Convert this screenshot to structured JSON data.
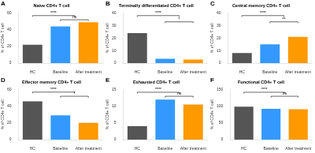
{
  "chart_data": [
    {
      "type": "bar",
      "label": "A",
      "title": "Naive CD4+ T cell",
      "ylabel": "% of CD4+ T cell",
      "categories": [
        "HC",
        "Baseline",
        "After treatment"
      ],
      "values": [
        22,
        44,
        49
      ],
      "colors": [
        "#555555",
        "#3399ff",
        "#ff9900"
      ],
      "ylim": [
        0,
        60
      ],
      "yticks": [
        0,
        20,
        40,
        60
      ],
      "grid": false,
      "annotations": [
        {
          "text": "****",
          "x1": 0,
          "x2": 1.5,
          "y": 57
        },
        {
          "text": "ns",
          "x1": 1,
          "x2": 2,
          "y": 52
        }
      ]
    },
    {
      "type": "bar",
      "label": "B",
      "title": "Terminally differentiated CD4+ T cell",
      "ylabel": "% of CD4+ T cell",
      "categories": [
        "HC",
        "Baseline",
        "After treatment"
      ],
      "values": [
        24,
        3.5,
        2.8
      ],
      "colors": [
        "#555555",
        "#3399ff",
        "#ff9900"
      ],
      "ylim": [
        0,
        40
      ],
      "yticks": [
        0,
        10,
        20,
        30,
        40
      ],
      "grid": false,
      "annotations": [
        {
          "text": "****",
          "x1": 0,
          "x2": 1.5,
          "y": 38
        },
        {
          "text": "*",
          "x1": 1,
          "x2": 2,
          "y": 33
        }
      ]
    },
    {
      "type": "bar",
      "label": "C",
      "title": "Central memory CD4+ T cell",
      "ylabel": "% of CD4+ T cell",
      "categories": [
        "HC",
        "Baseline",
        "After treatment"
      ],
      "values": [
        8,
        15,
        21
      ],
      "colors": [
        "#555555",
        "#3399ff",
        "#ff9900"
      ],
      "ylim": [
        0,
        40
      ],
      "yticks": [
        0,
        10,
        20,
        30,
        40
      ],
      "grid": false,
      "annotations": [
        {
          "text": "****",
          "x1": 0,
          "x2": 1.5,
          "y": 38
        },
        {
          "text": "**",
          "x1": 1,
          "x2": 2,
          "y": 33
        }
      ]
    },
    {
      "type": "bar",
      "label": "D",
      "title": "Effector memory CD4+ T cell",
      "ylabel": "% of CD4+ T cell",
      "categories": [
        "HC",
        "Baseline",
        "After treatment"
      ],
      "values": [
        46,
        29,
        20
      ],
      "colors": [
        "#555555",
        "#3399ff",
        "#ff9900"
      ],
      "ylim": [
        0,
        60
      ],
      "yticks": [
        0,
        20,
        40,
        60
      ],
      "grid": false,
      "annotations": [
        {
          "text": "****",
          "x1": 0,
          "x2": 1.5,
          "y": 57
        },
        {
          "text": "*",
          "x1": 1,
          "x2": 2,
          "y": 52
        }
      ]
    },
    {
      "type": "bar",
      "label": "E",
      "title": "Exhausted CD4+ T cell",
      "ylabel": "% of CD4+ T cell",
      "categories": [
        "HC",
        "Baseline",
        "After treatment"
      ],
      "values": [
        4,
        12,
        10.5
      ],
      "colors": [
        "#555555",
        "#3399ff",
        "#ff9900"
      ],
      "ylim": [
        0,
        15
      ],
      "yticks": [
        0,
        5,
        10,
        15
      ],
      "grid": false,
      "annotations": [
        {
          "text": "****",
          "x1": 0,
          "x2": 1.5,
          "y": 14.2
        },
        {
          "text": "ns",
          "x1": 1,
          "x2": 2,
          "y": 13
        }
      ]
    },
    {
      "type": "bar",
      "label": "F",
      "title": "Functional CD4+ T cell",
      "ylabel": "% of CD4+ T cell",
      "categories": [
        "HC",
        "Baseline",
        "After treatment"
      ],
      "values": [
        99,
        92,
        91
      ],
      "colors": [
        "#555555",
        "#3399ff",
        "#ff9900"
      ],
      "ylim": [
        0,
        150
      ],
      "yticks": [
        0,
        50,
        100,
        150
      ],
      "grid": false,
      "annotations": [
        {
          "text": "****",
          "x1": 0,
          "x2": 1.5,
          "y": 142
        },
        {
          "text": "ns",
          "x1": 1,
          "x2": 2,
          "y": 130
        }
      ]
    }
  ]
}
